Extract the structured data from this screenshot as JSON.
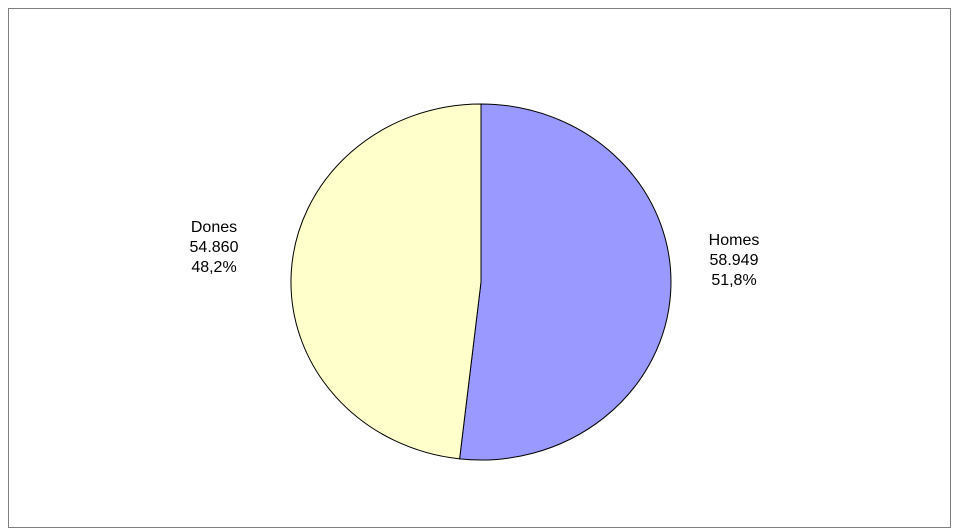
{
  "chart_data": {
    "type": "pie",
    "slices": [
      {
        "label": "Homes",
        "value": 58949,
        "value_text": "58.949",
        "percent_text": "51,8%",
        "color": "#9999ff"
      },
      {
        "label": "Dones",
        "value": 54860,
        "value_text": "54.860",
        "percent_text": "48,2%",
        "color": "#ffffcc"
      }
    ],
    "slice_border_color": "#000000",
    "legend": "none"
  }
}
